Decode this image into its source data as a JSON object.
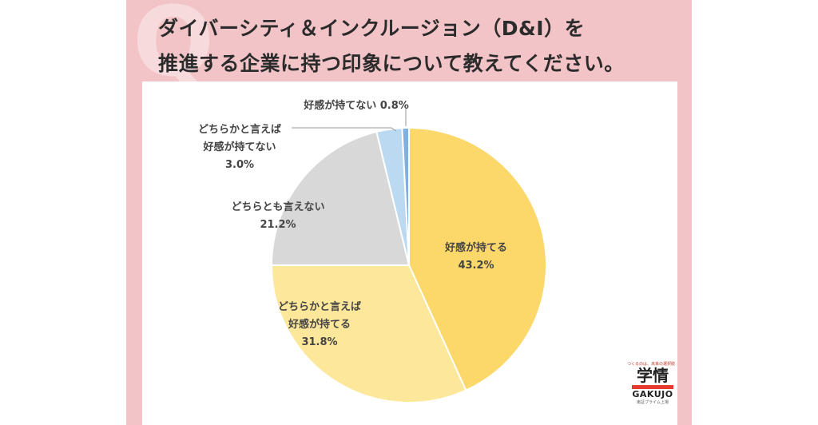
{
  "title_lines": [
    "ダイバーシティ＆インクルージョン（D&I）を",
    "推進する企業に持つ印象について教えてください。"
  ],
  "chart_data": {
    "type": "pie",
    "slices": [
      {
        "label_lines": [
          "好感が持てる",
          "43.2%"
        ],
        "value": 43.2,
        "color": "#fcd769"
      },
      {
        "label_lines": [
          "どちらかと言えば",
          "好感が持てる",
          "31.8%"
        ],
        "value": 31.8,
        "color": "#fde79a"
      },
      {
        "label_lines": [
          "どちらとも言えない",
          "21.2%"
        ],
        "value": 21.2,
        "color": "#d8d8d8"
      },
      {
        "label_lines": [
          "どちらかと言えば",
          "好感が持てない",
          "3.0%"
        ],
        "value": 3.0,
        "color": "#bcd9f2"
      },
      {
        "label_lines": [
          "好感が持てない 0.8%"
        ],
        "value": 0.8,
        "color": "#7fb0e0"
      }
    ]
  },
  "logo": {
    "tagline": "つくるのは、未来の選択肢",
    "kanji": "学情",
    "name": "GAKUJO",
    "sub": "東証プライム上場"
  },
  "colors": {
    "background": "#f2c4c7",
    "panel": "#ffffff"
  }
}
